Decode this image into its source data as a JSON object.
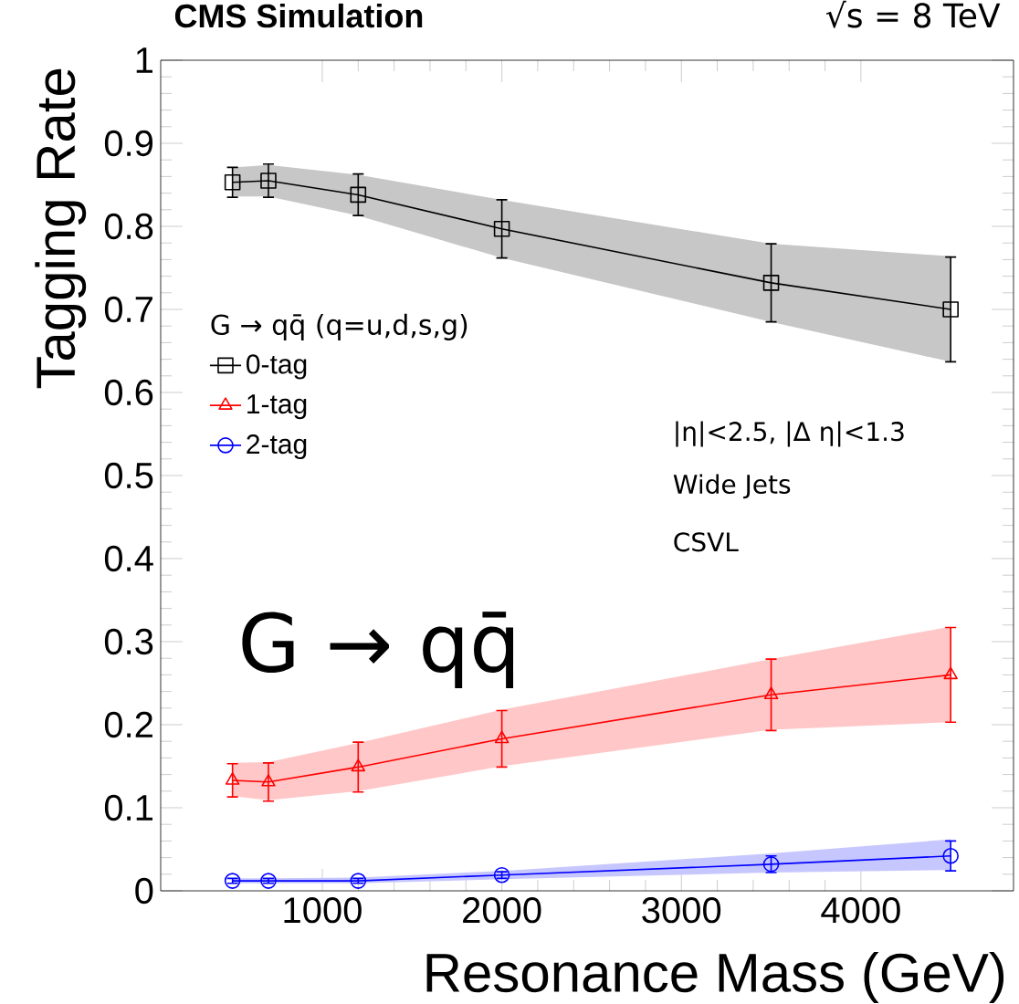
{
  "chart_data": {
    "type": "line",
    "xlabel": "Resonance Mass (GeV)",
    "ylabel": "Tagging Rate",
    "legend_title": "G → qq̄ (q=u,d,s,g)",
    "annotations": [
      "CMS Simulation",
      "√s = 8 TeV",
      "|η|<2.5, |Δ η|<1.3",
      "Wide Jets",
      "CSVL",
      "G → qq̄"
    ],
    "x": [
      500,
      700,
      1200,
      2000,
      3500,
      4500
    ],
    "series": [
      {
        "name": "0-tag",
        "color": "#000000",
        "marker": "square",
        "values": [
          0.853,
          0.855,
          0.838,
          0.797,
          0.732,
          0.7
        ],
        "errors": [
          0.018,
          0.02,
          0.025,
          0.035,
          0.047,
          0.063
        ],
        "lower": [
          0.836,
          0.836,
          0.813,
          0.762,
          0.685,
          0.637
        ],
        "upper": [
          0.871,
          0.874,
          0.862,
          0.832,
          0.779,
          0.764
        ]
      },
      {
        "name": "1-tag",
        "color": "#ff0000",
        "marker": "triangle",
        "values": [
          0.133,
          0.131,
          0.149,
          0.183,
          0.236,
          0.26
        ],
        "errors": [
          0.02,
          0.023,
          0.03,
          0.034,
          0.043,
          0.057
        ],
        "lower": [
          0.114,
          0.109,
          0.12,
          0.15,
          0.194,
          0.203
        ],
        "upper": [
          0.154,
          0.155,
          0.178,
          0.218,
          0.279,
          0.318
        ]
      },
      {
        "name": "2-tag",
        "color": "#0000ff",
        "marker": "circle",
        "values": [
          0.012,
          0.012,
          0.012,
          0.019,
          0.032,
          0.042
        ],
        "errors": [
          0.003,
          0.003,
          0.003,
          0.004,
          0.01,
          0.018
        ],
        "lower": [
          0.009,
          0.009,
          0.009,
          0.014,
          0.022,
          0.025
        ],
        "upper": [
          0.015,
          0.015,
          0.016,
          0.024,
          0.045,
          0.062
        ]
      }
    ],
    "xlim": [
      100,
      4850
    ],
    "ylim": [
      0,
      1
    ],
    "xticks": [
      1000,
      2000,
      3000,
      4000
    ],
    "yticks": [
      0,
      0.1,
      0.2,
      0.3,
      0.4,
      0.5,
      0.6,
      0.7,
      0.8,
      0.9,
      1
    ],
    "legend": "left",
    "grid": false
  }
}
